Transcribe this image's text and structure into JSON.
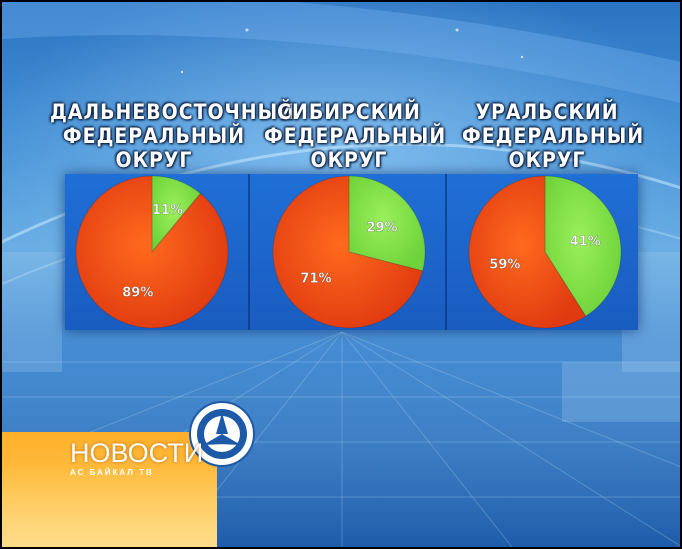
{
  "chart_data": [
    {
      "type": "pie",
      "title": [
        "ДАЛЬНЕВОСТОЧНЫЙ",
        "ФЕДЕРАЛЬНЫЙ",
        "ОКРУГ"
      ],
      "slices": [
        {
          "label": "11%",
          "value": 11,
          "color": "#6fd23a"
        },
        {
          "label": "89%",
          "value": 89,
          "color": "#e03a10"
        }
      ]
    },
    {
      "type": "pie",
      "title": [
        "СИБИРСКИЙ",
        "ФЕДЕРАЛЬНЫЙ",
        "ОКРУГ"
      ],
      "slices": [
        {
          "label": "29%",
          "value": 29,
          "color": "#6fd23a"
        },
        {
          "label": "71%",
          "value": 71,
          "color": "#e03a10"
        }
      ]
    },
    {
      "type": "pie",
      "title": [
        "УРАЛЬСКИЙ",
        "ФЕДЕРАЛЬНЫЙ",
        "ОКРУГ"
      ],
      "slices": [
        {
          "label": "41%",
          "value": 41,
          "color": "#6fd23a"
        },
        {
          "label": "59%",
          "value": 59,
          "color": "#e03a10"
        }
      ]
    }
  ],
  "logo": {
    "title": "НОВОСТИ",
    "subtitle": "АС БАЙКАЛ ТВ"
  },
  "colors": {
    "green": "#6fd23a",
    "red": "#e03a10",
    "panel": "#1f6fd6",
    "orange": "#ffb02a"
  }
}
